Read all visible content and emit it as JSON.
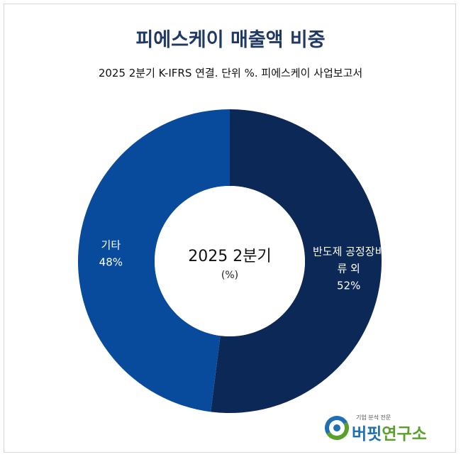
{
  "header": {
    "title": "피에스케이 매출액 비중",
    "subtitle": "2025 2분기 K-IFRS 연결. 단위 %. 피에스케이 사업보고서"
  },
  "chart_data": {
    "type": "pie",
    "donut": true,
    "center_title": "2025 2분기",
    "center_unit": "(%)",
    "slices": [
      {
        "label": "반도제 공정장비\n류 외",
        "value": 52,
        "value_text": "52%",
        "color": "#0c2856"
      },
      {
        "label": "기타",
        "value": 48,
        "value_text": "48%",
        "color": "#084b9c"
      }
    ]
  },
  "brand": {
    "tagline": "기업 분석 전문",
    "name_part1": "버핏",
    "name_part2": "연구소"
  }
}
